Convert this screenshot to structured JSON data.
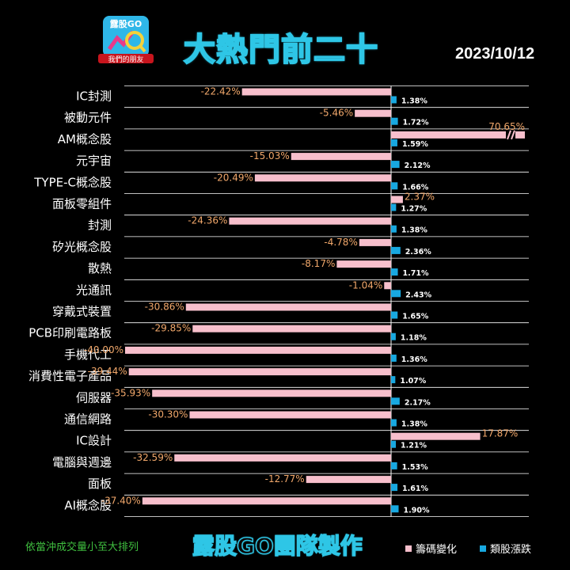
{
  "header": {
    "logo_text": "露股GO",
    "logo_subtext": "我們的朋友",
    "title": "大熱門前二十",
    "date": "2023/10/12"
  },
  "footer": {
    "note": "依當沖成交量小至大排列",
    "team": "露股GO團隊製作"
  },
  "colors": {
    "pink": "#f7bfcc",
    "blue": "#18a8e0",
    "orange_label": "#f2a86b",
    "white_label": "#ffffff",
    "grid": "#ffffff",
    "title_stroke": "#2ec6e6"
  },
  "chart_data": {
    "type": "bar",
    "orientation": "horizontal",
    "categories": [
      "IC封測",
      "被動元件",
      "AM概念股",
      "元宇宙",
      "TYPE-C概念股",
      "面板零組件",
      "封測",
      "矽光概念股",
      "散熱",
      "光通訊",
      "穿戴式裝置",
      "PCB印刷電路板",
      "手機代工",
      "消費性電子產品",
      "伺服器",
      "通信網路",
      "IC設計",
      "電腦與週邊",
      "面板",
      "AI概念股"
    ],
    "series": [
      {
        "name": "籌碼變化",
        "values": [
          -22.42,
          -5.46,
          70.65,
          -15.03,
          -20.49,
          2.37,
          -24.36,
          -4.78,
          -8.17,
          -1.04,
          -30.86,
          -29.85,
          -40.0,
          -39.44,
          -35.93,
          -30.3,
          17.87,
          -32.59,
          -12.77,
          -37.4
        ],
        "labels": [
          "-22.42%",
          "-5.46%",
          "70.65%",
          "-15.03%",
          "-20.49%",
          "2.37%",
          "-24.36%",
          "-4.78%",
          "-8.17%",
          "-1.04%",
          "-30.86%",
          "-29.85%",
          "-40.00%",
          "-39.44%",
          "-35.93%",
          "-30.30%",
          "17.87%",
          "-32.59%",
          "-12.77%",
          "-37.40%"
        ]
      },
      {
        "name": "類股漲跌",
        "values": [
          1.38,
          1.72,
          1.59,
          2.12,
          1.66,
          1.27,
          1.38,
          2.36,
          1.71,
          2.43,
          1.65,
          1.18,
          1.36,
          1.07,
          2.17,
          1.38,
          1.21,
          1.53,
          1.61,
          1.9
        ],
        "labels": [
          "1.38%",
          "1.72%",
          "1.59%",
          "2.12%",
          "1.66%",
          "1.27%",
          "1.38%",
          "2.36%",
          "1.71%",
          "2.43%",
          "1.65%",
          "1.18%",
          "1.36%",
          "1.07%",
          "2.17%",
          "1.38%",
          "1.21%",
          "1.53%",
          "1.61%",
          "1.90%"
        ]
      }
    ],
    "axis_break": true,
    "legend_position": "bottom-right",
    "grid": true
  }
}
